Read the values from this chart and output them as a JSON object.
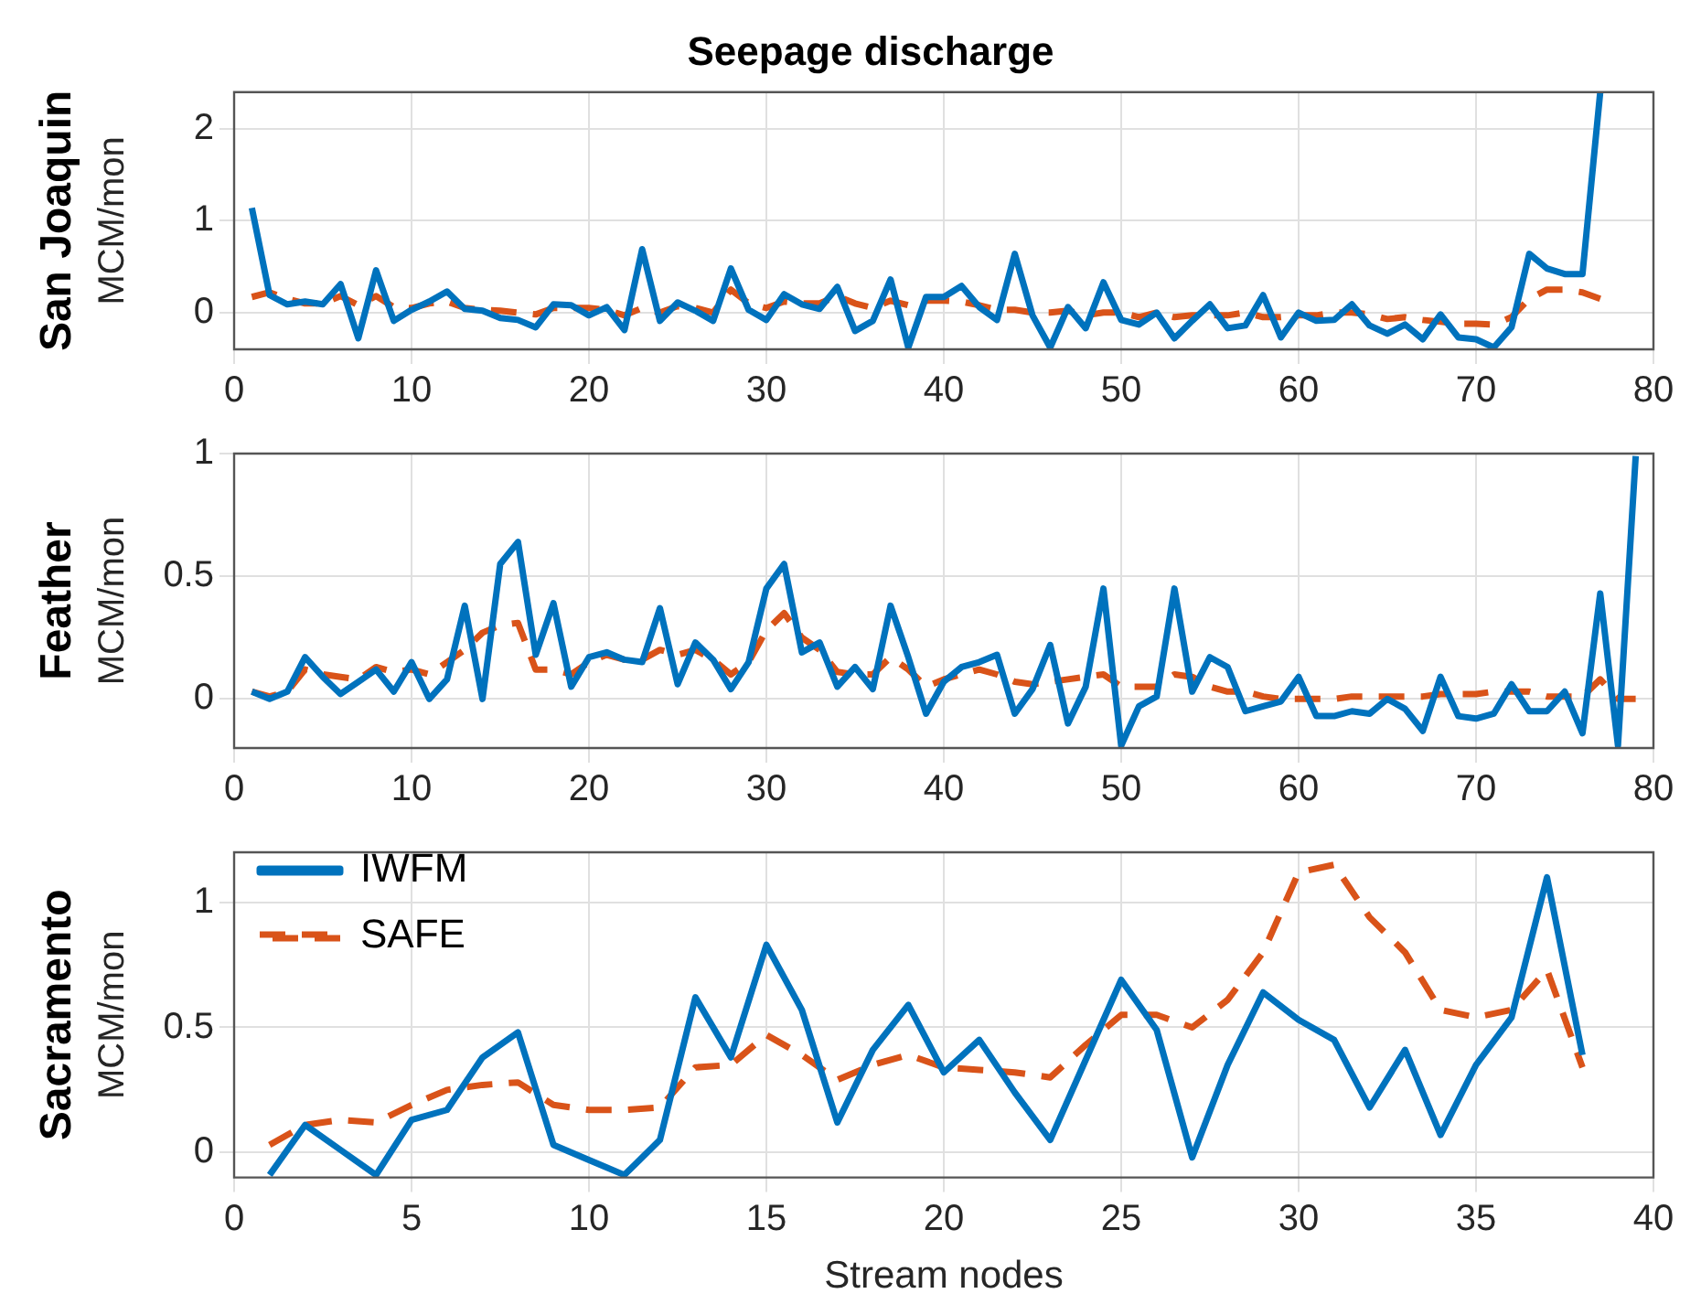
{
  "chart_data": [
    {
      "type": "line",
      "title": "Seepage discharge",
      "ylabel": "MCM/mon",
      "annotations": [
        "San Joaquin"
      ],
      "marker": "none",
      "grid": true,
      "xlim": [
        0,
        80
      ],
      "xticks": [
        0,
        10,
        20,
        30,
        40,
        50,
        60,
        70,
        80
      ],
      "ylim": [
        -0.4,
        2.4
      ],
      "yticks": [
        0,
        1,
        2
      ],
      "x": [
        1,
        2,
        3,
        4,
        5,
        6,
        7,
        8,
        9,
        10,
        11,
        12,
        13,
        14,
        15,
        16,
        17,
        18,
        19,
        20,
        21,
        22,
        23,
        24,
        25,
        26,
        27,
        28,
        29,
        30,
        31,
        32,
        33,
        34,
        35,
        36,
        37,
        38,
        39,
        40,
        41,
        42,
        43,
        44,
        45,
        46,
        47,
        48,
        49,
        50,
        51,
        52,
        53,
        54,
        55,
        56,
        57,
        58,
        59,
        60,
        61,
        62,
        63,
        64,
        65,
        66,
        67,
        68,
        69,
        70,
        71,
        72,
        73,
        74,
        75,
        76,
        77
      ],
      "series": [
        {
          "color": "#0072bd",
          "line_style": "solid",
          "values": [
            1.14,
            0.19,
            0.09,
            0.12,
            0.09,
            0.31,
            -0.28,
            0.46,
            -0.09,
            0.03,
            0.12,
            0.23,
            0.04,
            0.02,
            -0.06,
            -0.08,
            -0.16,
            0.09,
            0.08,
            -0.03,
            0.06,
            -0.19,
            0.69,
            -0.09,
            0.11,
            0.02,
            -0.09,
            0.48,
            0.03,
            -0.08,
            0.2,
            0.09,
            0.04,
            0.28,
            -0.2,
            -0.09,
            0.36,
            -0.38,
            0.17,
            0.17,
            0.29,
            0.06,
            -0.08,
            0.64,
            -0.03,
            -0.38,
            0.06,
            -0.17,
            0.33,
            -0.08,
            -0.13,
            0,
            -0.28,
            -0.09,
            0.09,
            -0.17,
            -0.14,
            0.19,
            -0.27,
            0,
            -0.09,
            -0.08,
            0.09,
            -0.14,
            -0.23,
            -0.13,
            -0.29,
            -0.02,
            -0.27,
            -0.29,
            -0.38,
            -0.16,
            0.64,
            0.48,
            0.42,
            0.42,
            2.4
          ]
        },
        {
          "color": "#d95319",
          "line_style": "dashed",
          "values": [
            0.17,
            0.22,
            0.15,
            0.1,
            0.1,
            0.18,
            0.08,
            0.18,
            0.06,
            0.05,
            0.1,
            0.12,
            0.05,
            0.03,
            0.02,
            0,
            -0.02,
            0.05,
            0.05,
            0.05,
            0.03,
            -0.03,
            0.05,
            0,
            0.07,
            0.05,
            0,
            0.25,
            0.1,
            0.05,
            0.12,
            0.1,
            0.1,
            0.18,
            0.1,
            0.05,
            0.13,
            0.08,
            0.13,
            0.13,
            0.12,
            0.08,
            0.03,
            0.03,
            0,
            0,
            0.02,
            -0.03,
            0,
            0,
            -0.05,
            0,
            -0.05,
            -0.03,
            -0.03,
            -0.03,
            0,
            -0.05,
            -0.05,
            -0.03,
            -0.03,
            0,
            0,
            -0.02,
            -0.07,
            -0.05,
            -0.08,
            -0.1,
            -0.12,
            -0.12,
            -0.13,
            -0.05,
            0.15,
            0.25,
            0.25,
            0.22,
            0.15
          ]
        }
      ]
    },
    {
      "type": "line",
      "ylabel": "MCM/mon",
      "annotations": [
        "Feather"
      ],
      "marker": "none",
      "grid": true,
      "xlim": [
        0,
        80
      ],
      "xticks": [
        0,
        10,
        20,
        30,
        40,
        50,
        60,
        70,
        80
      ],
      "ylim": [
        -0.2,
        1
      ],
      "yticks": [
        0,
        0.5,
        1
      ],
      "x": [
        1,
        2,
        3,
        4,
        5,
        6,
        7,
        8,
        9,
        10,
        11,
        12,
        13,
        14,
        15,
        16,
        17,
        18,
        19,
        20,
        21,
        22,
        23,
        24,
        25,
        26,
        27,
        28,
        29,
        30,
        31,
        32,
        33,
        34,
        35,
        36,
        37,
        38,
        39,
        40,
        41,
        42,
        43,
        44,
        45,
        46,
        47,
        48,
        49,
        50,
        51,
        52,
        53,
        54,
        55,
        56,
        57,
        58,
        59,
        60,
        61,
        62,
        63,
        64,
        65,
        66,
        67,
        68,
        69,
        70,
        71,
        72,
        73,
        74,
        75,
        76,
        77,
        78,
        79
      ],
      "series": [
        {
          "color": "#0072bd",
          "line_style": "solid",
          "values": [
            0.03,
            0,
            0.03,
            0.17,
            0.09,
            0.02,
            0.07,
            0.12,
            0.03,
            0.15,
            0,
            0.08,
            0.38,
            0,
            0.55,
            0.64,
            0.18,
            0.39,
            0.05,
            0.17,
            0.19,
            0.16,
            0.15,
            0.37,
            0.06,
            0.23,
            0.16,
            0.04,
            0.15,
            0.45,
            0.55,
            0.19,
            0.23,
            0.05,
            0.13,
            0.04,
            0.38,
            0.17,
            -0.06,
            0.07,
            0.13,
            0.15,
            0.18,
            -0.06,
            0.04,
            0.22,
            -0.1,
            0.05,
            0.45,
            -0.19,
            -0.03,
            0.01,
            0.45,
            0.03,
            0.17,
            0.13,
            -0.05,
            -0.03,
            -0.01,
            0.09,
            -0.07,
            -0.07,
            -0.05,
            -0.06,
            0,
            -0.04,
            -0.13,
            0.09,
            -0.07,
            -0.08,
            -0.06,
            0.06,
            -0.05,
            -0.05,
            0.03,
            -0.14,
            0.43,
            -0.19,
            0.99
          ]
        },
        {
          "color": "#d95319",
          "line_style": "dashed",
          "values": [
            0.03,
            0.01,
            0.03,
            0.12,
            0.1,
            0.09,
            0.08,
            0.13,
            0.11,
            0.12,
            0.1,
            0.15,
            0.2,
            0.27,
            0.3,
            0.31,
            0.12,
            0.12,
            0.1,
            0.15,
            0.18,
            0.16,
            0.16,
            0.2,
            0.18,
            0.2,
            0.16,
            0.1,
            0.15,
            0.28,
            0.35,
            0.25,
            0.2,
            0.11,
            0.1,
            0.1,
            0.17,
            0.12,
            0.05,
            0.08,
            0.1,
            0.12,
            0.1,
            0.07,
            0.06,
            0.07,
            0.08,
            0.09,
            0.1,
            0.05,
            0.05,
            0.05,
            0.1,
            0.09,
            0.05,
            0.03,
            0.03,
            0.01,
            0,
            0,
            0,
            0,
            0.01,
            0.01,
            0.01,
            0.01,
            0.01,
            0.02,
            0.02,
            0.02,
            0.03,
            0.03,
            0.03,
            0.01,
            0.01,
            0.01,
            0.08,
            0,
            0
          ]
        }
      ]
    },
    {
      "type": "line",
      "xlabel": "Stream nodes",
      "ylabel": "MCM/mon",
      "annotations": [
        "Sacramento"
      ],
      "marker": "none",
      "grid": true,
      "legend": "top left",
      "xlim": [
        0,
        40
      ],
      "xticks": [
        0,
        5,
        10,
        15,
        20,
        25,
        30,
        35,
        40
      ],
      "ylim": [
        -0.1,
        1.2
      ],
      "yticks": [
        0,
        0.5,
        1
      ],
      "x": [
        1,
        2,
        3,
        4,
        5,
        6,
        7,
        8,
        9,
        10,
        11,
        12,
        13,
        14,
        15,
        16,
        17,
        18,
        19,
        20,
        21,
        22,
        23,
        24,
        25,
        26,
        27,
        28,
        29,
        30,
        31,
        32,
        33,
        34,
        35,
        36,
        37,
        38
      ],
      "series": [
        {
          "name": "IWFM",
          "color": "#0072bd",
          "line_style": "solid",
          "values": [
            -0.09,
            0.11,
            0.01,
            -0.09,
            0.13,
            0.17,
            0.38,
            0.48,
            0.03,
            -0.03,
            -0.09,
            0.05,
            0.62,
            0.38,
            0.83,
            0.57,
            0.12,
            0.41,
            0.59,
            0.32,
            0.45,
            0.24,
            0.05,
            0.37,
            0.69,
            0.49,
            -0.02,
            0.35,
            0.64,
            0.53,
            0.45,
            0.18,
            0.41,
            0.07,
            0.35,
            0.54,
            1.1,
            0.39
          ]
        },
        {
          "name": "SAFE",
          "color": "#d95319",
          "line_style": "dashed",
          "values": [
            0.03,
            0.11,
            0.13,
            0.12,
            0.19,
            0.25,
            0.27,
            0.28,
            0.19,
            0.17,
            0.17,
            0.18,
            0.34,
            0.35,
            0.47,
            0.39,
            0.29,
            0.35,
            0.39,
            0.34,
            0.33,
            0.32,
            0.3,
            0.43,
            0.55,
            0.55,
            0.5,
            0.61,
            0.8,
            1.12,
            1.15,
            0.94,
            0.8,
            0.57,
            0.54,
            0.57,
            0.73,
            0.34
          ]
        }
      ]
    }
  ]
}
